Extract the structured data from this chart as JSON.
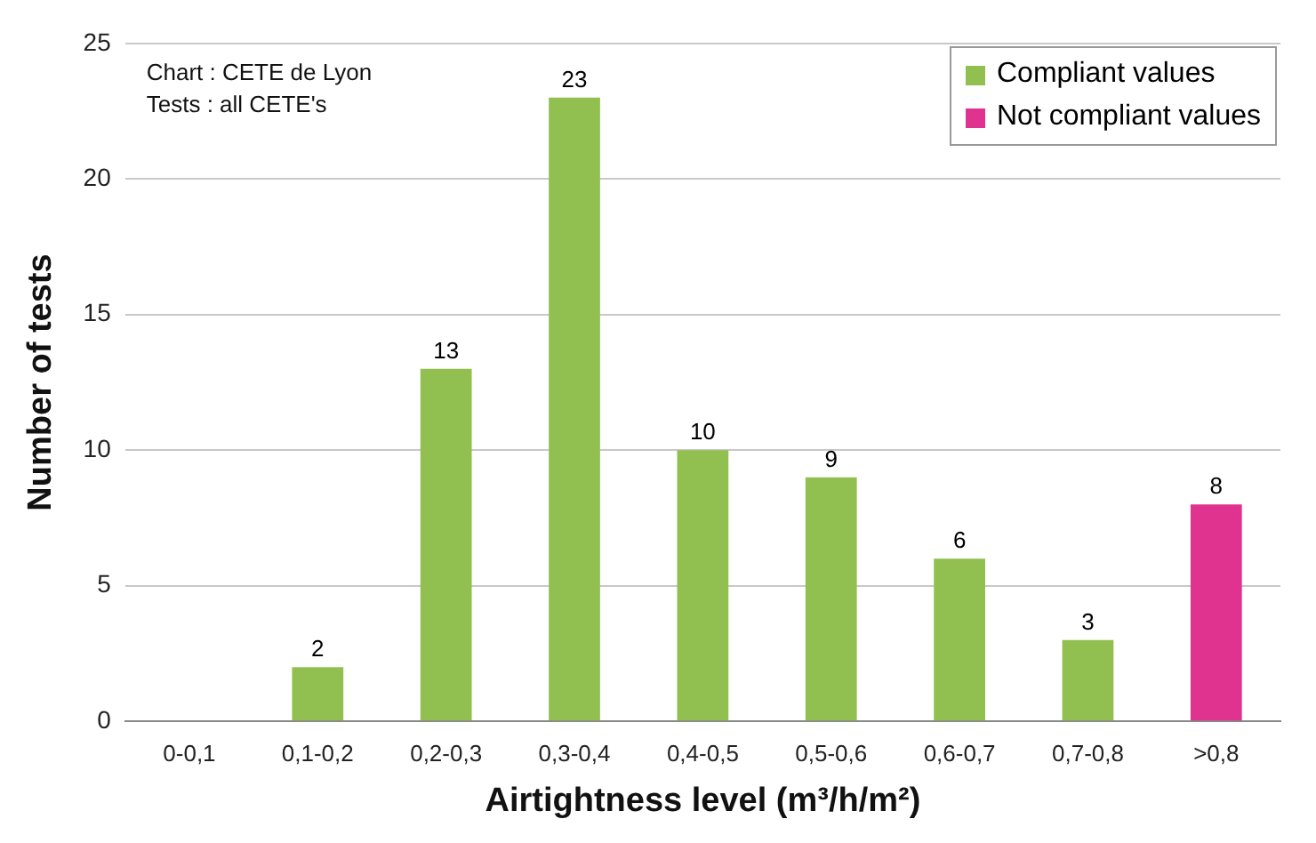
{
  "chart_data": {
    "type": "bar",
    "xlabel": "Airtightness level (m³/h/m²)",
    "ylabel": "Number of tests",
    "categories": [
      "0-0,1",
      "0,1-0,2",
      "0,2-0,3",
      "0,3-0,4",
      "0,4-0,5",
      "0,5-0,6",
      "0,6-0,7",
      "0,7-0,8",
      ">0,8"
    ],
    "series": [
      {
        "name": "Compliant values",
        "color": "#92c050",
        "values": [
          0,
          2,
          13,
          23,
          10,
          9,
          6,
          3,
          null
        ],
        "value_labels": [
          null,
          "2",
          "13",
          "23",
          "10",
          "9",
          "6",
          "3",
          null
        ]
      },
      {
        "name": "Not compliant values",
        "color": "#e0338f",
        "values": [
          null,
          null,
          null,
          null,
          null,
          null,
          null,
          null,
          8
        ],
        "value_labels": [
          null,
          null,
          null,
          null,
          null,
          null,
          null,
          null,
          "8"
        ]
      }
    ],
    "ylim": [
      0,
      25
    ],
    "yticks": [
      0,
      5,
      10,
      15,
      20,
      25
    ],
    "grid": "y",
    "legend": "top right",
    "annotations": [
      "Chart : CETE de Lyon",
      "Tests : all CETE's"
    ]
  }
}
